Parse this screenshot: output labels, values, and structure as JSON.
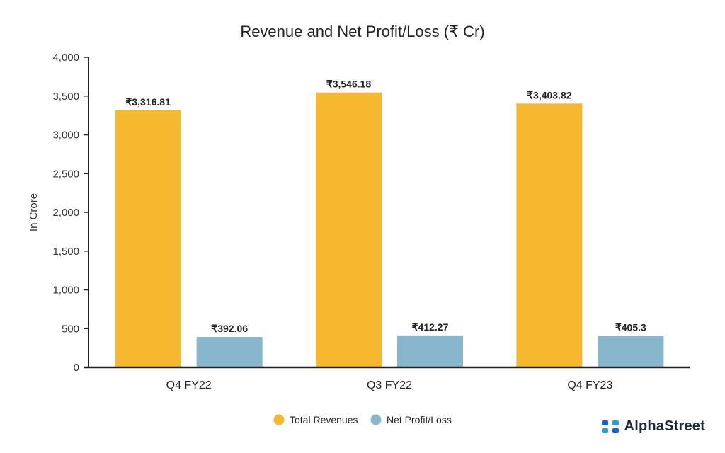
{
  "chart_data": {
    "type": "bar",
    "title": "Revenue and Net Profit/Loss (₹ Cr)",
    "xlabel": "",
    "ylabel": "In Crore",
    "ylim": [
      0,
      4000
    ],
    "yticks": [
      0,
      500,
      1000,
      1500,
      2000,
      2500,
      3000,
      3500,
      4000
    ],
    "ytick_labels": [
      "0",
      "500",
      "1,000",
      "1,500",
      "2,000",
      "2,500",
      "3,000",
      "3,500",
      "4,000"
    ],
    "categories": [
      "Q4 FY22",
      "Q3 FY22",
      "Q4 FY23"
    ],
    "series": [
      {
        "name": "Total Revenues",
        "color": "#f5b82e",
        "values": [
          3316.81,
          3546.18,
          3403.82
        ],
        "labels": [
          "₹3,316.81",
          "₹3,546.18",
          "₹3,403.82"
        ]
      },
      {
        "name": "Net Profit/Loss",
        "color": "#88b6cc",
        "values": [
          392.06,
          412.27,
          405.3
        ],
        "labels": [
          "₹392.06",
          "₹412.27",
          "₹405.3"
        ]
      }
    ],
    "legend_position": "bottom-center",
    "grid": false
  },
  "brand": {
    "name": "AlphaStreet"
  }
}
